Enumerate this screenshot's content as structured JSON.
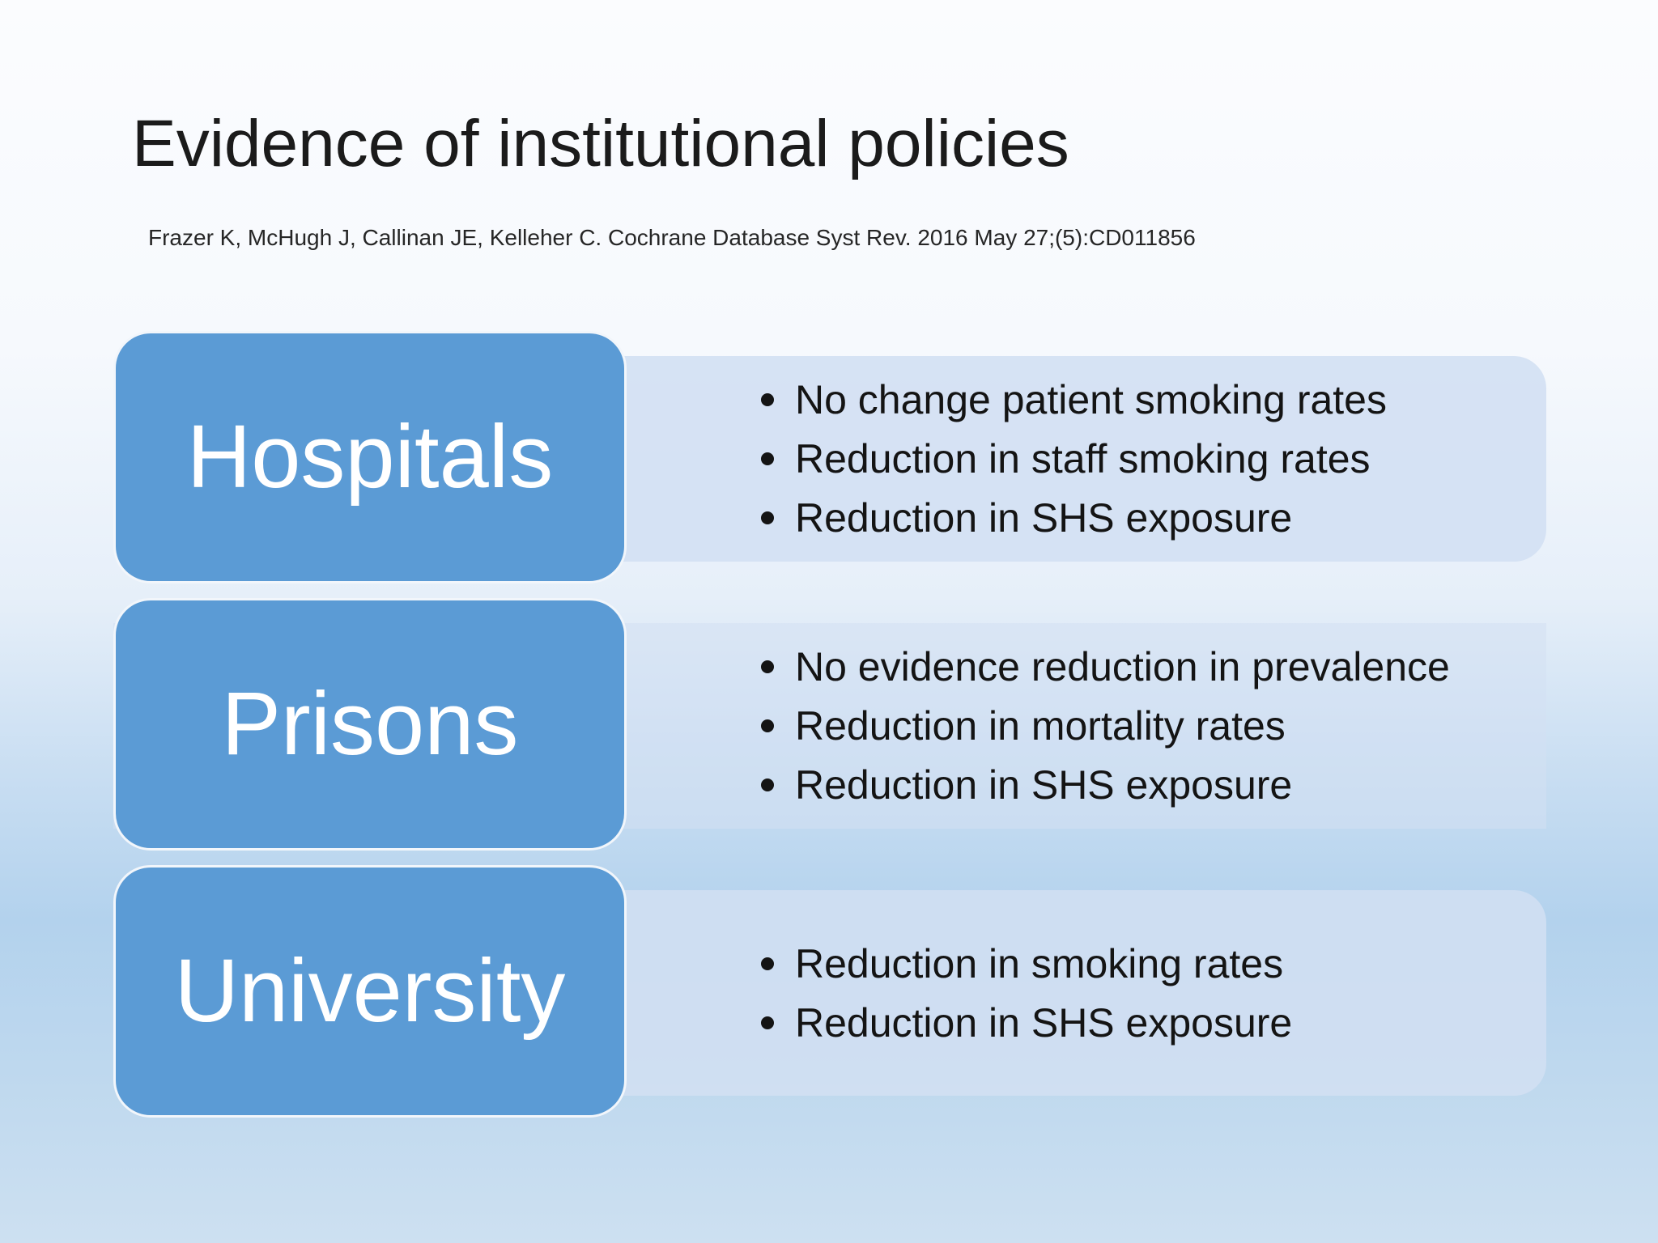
{
  "slide": {
    "title": "Evidence of institutional policies",
    "citation": "Frazer K, McHugh J, Callinan JE, Kelleher C. Cochrane Database Syst Rev. 2016 May 27;(5):CD011856"
  },
  "rows": [
    {
      "label": "Hospitals",
      "bullets": [
        "No change patient smoking rates",
        "Reduction in staff smoking rates",
        "Reduction in SHS exposure"
      ]
    },
    {
      "label": "Prisons",
      "bullets": [
        "No evidence reduction in prevalence",
        "Reduction in mortality rates",
        "Reduction in SHS exposure"
      ]
    },
    {
      "label": "University",
      "bullets": [
        "Reduction in smoking rates",
        "Reduction in SHS exposure"
      ]
    }
  ],
  "colors": {
    "label_box": "#5b9bd5",
    "label_text": "#ffffff",
    "panel": "#d2dff2",
    "body_text": "#141414"
  }
}
